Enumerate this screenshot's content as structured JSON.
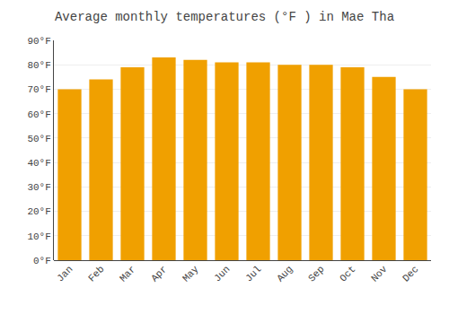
{
  "chart_data": {
    "type": "bar",
    "title": "Average monthly temperatures (°F ) in Mae Tha",
    "categories": [
      "Jan",
      "Feb",
      "Mar",
      "Apr",
      "May",
      "Jun",
      "Jul",
      "Aug",
      "Sep",
      "Oct",
      "Nov",
      "Dec"
    ],
    "values": [
      70,
      74,
      79,
      83,
      82,
      81,
      81,
      80,
      80,
      79,
      75,
      70
    ],
    "color": "#F0A000",
    "ylim": [
      0,
      90
    ],
    "yticks": [
      {
        "value": 0,
        "label": "0°F"
      },
      {
        "value": 10,
        "label": "10°F"
      },
      {
        "value": 20,
        "label": "20°F"
      },
      {
        "value": 30,
        "label": "30°F"
      },
      {
        "value": 40,
        "label": "40°F"
      },
      {
        "value": 50,
        "label": "50°F"
      },
      {
        "value": 60,
        "label": "60°F"
      },
      {
        "value": 70,
        "label": "70°F"
      },
      {
        "value": 80,
        "label": "80°F"
      },
      {
        "value": 90,
        "label": "90°F"
      }
    ],
    "grid": true
  }
}
